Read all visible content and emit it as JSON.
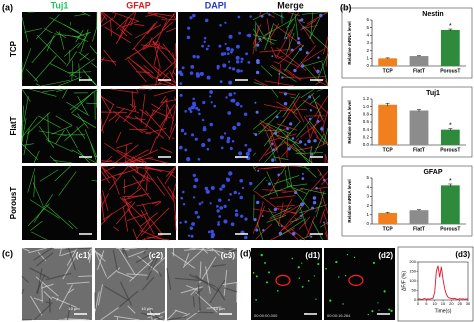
{
  "panel_a": {
    "label": "(a)",
    "columns": [
      {
        "text": "Tuj1",
        "color": "#22c55e"
      },
      {
        "text": "GFAP",
        "color": "#e11d1d"
      },
      {
        "text": "DAPI",
        "color": "#2438c8"
      },
      {
        "text": "Merge",
        "color": "#111111"
      }
    ],
    "rows": [
      "TCP",
      "FlatT",
      "PorousT"
    ]
  },
  "panel_b": {
    "label": "(b)"
  },
  "panel_c": {
    "label": "(c)",
    "images": [
      {
        "label": "(c1)",
        "scale": "10 µm"
      },
      {
        "label": "(c2)",
        "scale": "10 µm"
      },
      {
        "label": "(c3)",
        "scale": "10 µm"
      }
    ]
  },
  "panel_d": {
    "label": "(d)",
    "images": [
      {
        "label": "(d1)",
        "time": "00:00:00.000"
      },
      {
        "label": "(d2)",
        "time": "00:00:16.264"
      }
    ],
    "plot_label": "(d3)"
  },
  "chart_data": [
    {
      "type": "bar",
      "title": "Nestin",
      "ylabel": "Relative mRNA level",
      "categories": [
        "TCP",
        "FlatT",
        "PorousT"
      ],
      "values": [
        1,
        1.3,
        4.7
      ],
      "errors": [
        0.06,
        0.05,
        0.12
      ],
      "colors": [
        "#f0801e",
        "#8c8c8c",
        "#2e8b3c"
      ],
      "annotations": [
        null,
        null,
        "*"
      ],
      "ylim": [
        0,
        6
      ],
      "yticks": [
        0,
        1,
        2,
        3,
        4,
        5,
        6
      ]
    },
    {
      "type": "bar",
      "title": "Tuj1",
      "ylabel": "Relative mRNA level",
      "categories": [
        "TCP",
        "FlatT",
        "PorousT"
      ],
      "values": [
        1.05,
        0.9,
        0.4
      ],
      "errors": [
        0.04,
        0.03,
        0.03
      ],
      "colors": [
        "#f0801e",
        "#8c8c8c",
        "#2e8b3c"
      ],
      "annotations": [
        null,
        null,
        "*"
      ],
      "ylim": [
        0,
        1.2
      ],
      "yticks": [
        {
          "value": 0,
          "label": "0.0"
        },
        0.2,
        0.4,
        0.6,
        0.8,
        {
          "value": 1,
          "label": "1.0"
        },
        1.2
      ]
    },
    {
      "type": "bar",
      "title": "GFAP",
      "ylabel": "Relative mRNA level",
      "categories": [
        "TCP",
        "FlatT",
        "PorousT"
      ],
      "values": [
        1.2,
        1.5,
        4.2
      ],
      "errors": [
        0.06,
        0.06,
        0.15
      ],
      "colors": [
        "#f0801e",
        "#8c8c8c",
        "#2e8b3c"
      ],
      "annotations": [
        null,
        null,
        "*"
      ],
      "ylim": [
        0,
        5
      ],
      "yticks": [
        0,
        1,
        2,
        3,
        4,
        5
      ]
    },
    {
      "type": "line",
      "xlabel": "Time(s)",
      "ylabel": "ΔF/F (%)",
      "x": [
        0,
        1,
        2,
        3,
        4,
        5,
        6,
        7,
        8,
        9,
        10,
        11,
        12,
        13,
        14,
        15,
        16,
        17,
        18,
        19,
        20,
        21,
        22,
        23,
        24,
        25,
        26,
        27,
        28,
        29,
        30
      ],
      "series": [
        {
          "color": "#e0162b",
          "values": [
            4,
            6,
            3,
            5,
            8,
            4,
            6,
            5,
            7,
            10,
            40,
            150,
            180,
            120,
            175,
            110,
            60,
            30,
            15,
            10,
            8,
            6,
            9,
            5,
            4,
            7,
            5,
            6,
            4,
            5,
            6
          ]
        }
      ],
      "xlim": [
        0,
        30
      ],
      "ylim": [
        0,
        200
      ],
      "xticks": [
        0,
        5,
        10,
        15,
        20,
        25,
        30
      ],
      "yticks": [
        0,
        50,
        100,
        150,
        200
      ]
    }
  ]
}
